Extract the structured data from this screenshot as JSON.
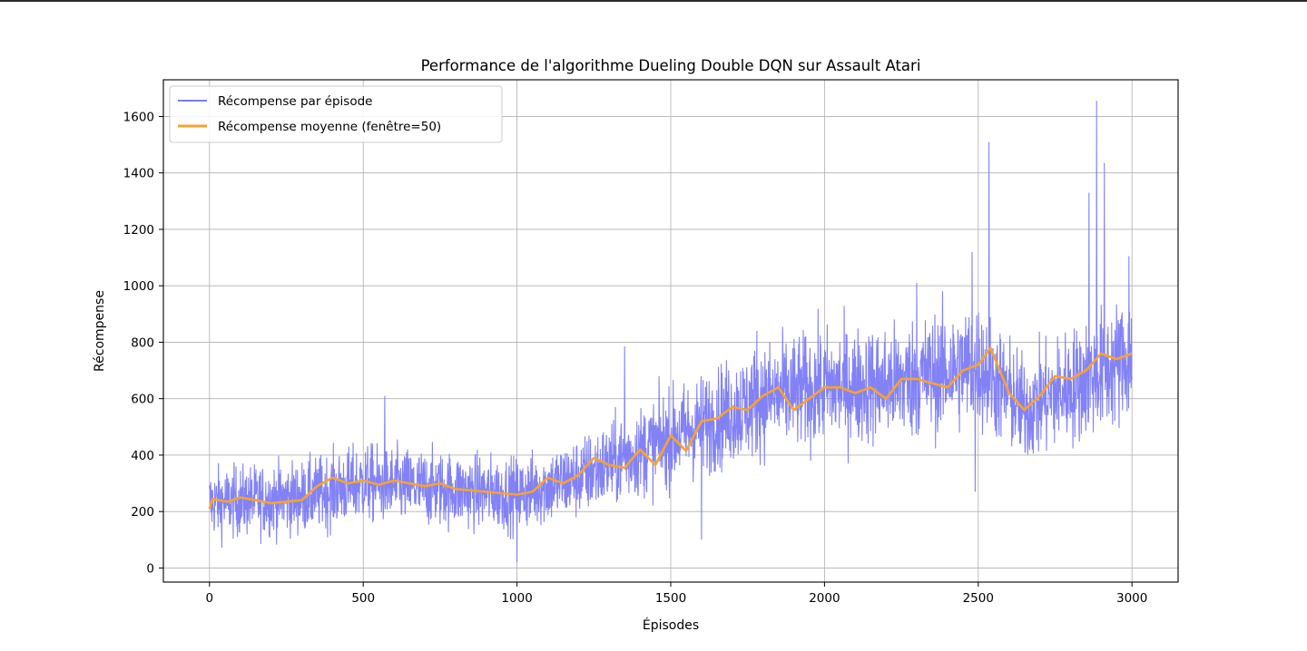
{
  "chart_data": {
    "type": "line",
    "title": "Performance de l'algorithme Dueling Double DQN sur Assault Atari",
    "xlabel": "Épisodes",
    "ylabel": "Récompense",
    "xlim": [
      -150,
      3150
    ],
    "ylim": [
      -50,
      1730
    ],
    "x_ticks": [
      0,
      500,
      1000,
      1500,
      2000,
      2500,
      3000
    ],
    "y_ticks": [
      0,
      200,
      400,
      600,
      800,
      1000,
      1200,
      1400,
      1600
    ],
    "grid": true,
    "legend_position": "top-left",
    "series": [
      {
        "name": "Récompense par épisode",
        "color": "#7b7bf5",
        "x_range": [
          0,
          3000
        ],
        "points": 3001,
        "trend": [
          [
            0,
            230
          ],
          [
            300,
            250
          ],
          [
            500,
            300
          ],
          [
            1000,
            260
          ],
          [
            1200,
            320
          ],
          [
            1500,
            460
          ],
          [
            1800,
            600
          ],
          [
            2000,
            640
          ],
          [
            2200,
            650
          ],
          [
            2500,
            720
          ],
          [
            2650,
            560
          ],
          [
            3000,
            750
          ]
        ],
        "spikes": [
          [
            1350,
            785
          ],
          [
            1780,
            840
          ],
          [
            2300,
            1010
          ],
          [
            2480,
            1120
          ],
          [
            2535,
            1510
          ],
          [
            2860,
            1330
          ],
          [
            2885,
            1655
          ],
          [
            2910,
            1435
          ],
          [
            2990,
            1105
          ],
          [
            570,
            610
          ],
          [
            1000,
            20
          ],
          [
            1600,
            100
          ],
          [
            2490,
            270
          ]
        ]
      },
      {
        "name": "Récompense moyenne (fenêtre=50)",
        "color": "#f6a32e",
        "x": [
          0,
          10,
          30,
          60,
          100,
          150,
          200,
          250,
          300,
          350,
          400,
          450,
          500,
          550,
          600,
          650,
          700,
          750,
          800,
          850,
          900,
          950,
          1000,
          1050,
          1100,
          1150,
          1200,
          1250,
          1300,
          1350,
          1400,
          1450,
          1500,
          1550,
          1600,
          1650,
          1700,
          1750,
          1800,
          1850,
          1900,
          1950,
          2000,
          2050,
          2100,
          2150,
          2200,
          2250,
          2300,
          2350,
          2400,
          2450,
          2500,
          2540,
          2570,
          2600,
          2650,
          2700,
          2750,
          2800,
          2850,
          2900,
          2950,
          3000
        ],
        "values": [
          210,
          245,
          240,
          235,
          250,
          240,
          230,
          235,
          240,
          290,
          320,
          300,
          310,
          295,
          310,
          300,
          290,
          300,
          280,
          275,
          270,
          265,
          260,
          270,
          320,
          300,
          330,
          390,
          365,
          355,
          420,
          365,
          470,
          415,
          520,
          530,
          570,
          560,
          610,
          640,
          560,
          600,
          640,
          640,
          620,
          640,
          600,
          670,
          670,
          655,
          640,
          700,
          720,
          780,
          700,
          620,
          560,
          610,
          680,
          670,
          700,
          760,
          740,
          760
        ]
      }
    ]
  }
}
